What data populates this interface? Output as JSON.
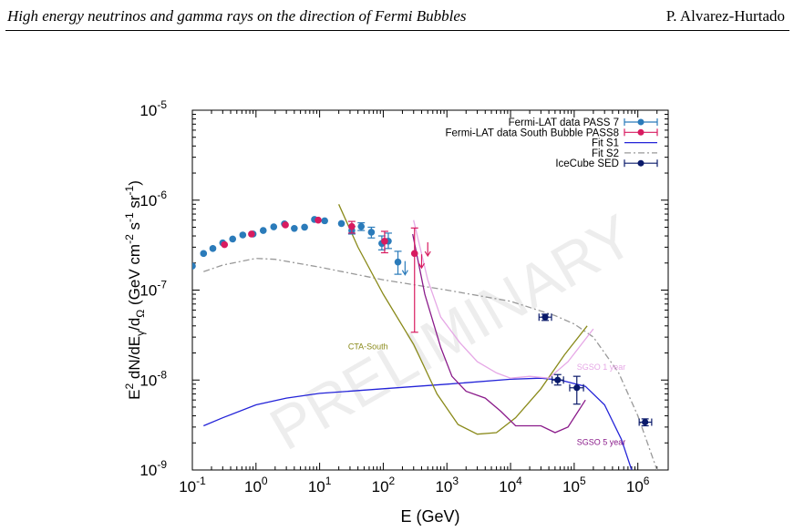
{
  "header": {
    "title": "High energy neutrinos and gamma rays on the direction of Fermi Bubbles",
    "author": "P. Alvarez-Hurtado"
  },
  "watermark": "PRELIMINARY",
  "colors": {
    "pass7": "#2b7bba",
    "pass8": "#d81b60",
    "fitS1": "#2323d8",
    "fitS2": "#999999",
    "icecube": "#0a1a6a",
    "cta": "#8a8a1a",
    "sgso1": "#e6a8e6",
    "sgso5": "#8a1a8a"
  },
  "chart_data": {
    "type": "scatter",
    "xlabel": "E (GeV)",
    "ylabel": "E2 dN/dEγ/dΩ (GeV cm-2 s-1 sr-1)",
    "xscale": "log",
    "yscale": "log",
    "xlim": [
      0.1,
      3000000
    ],
    "ylim": [
      1e-09,
      1e-05
    ],
    "xticks": [
      {
        "v": 0.1,
        "base": "10",
        "exp": "-1"
      },
      {
        "v": 1,
        "base": "10",
        "exp": "0"
      },
      {
        "v": 10,
        "base": "10",
        "exp": "1"
      },
      {
        "v": 100,
        "base": "10",
        "exp": "2"
      },
      {
        "v": 1000,
        "base": "10",
        "exp": "3"
      },
      {
        "v": 10000,
        "base": "10",
        "exp": "4"
      },
      {
        "v": 100000,
        "base": "10",
        "exp": "5"
      },
      {
        "v": 1000000,
        "base": "10",
        "exp": "6"
      }
    ],
    "yticks": [
      {
        "v": 1e-09,
        "base": "10",
        "exp": "-9"
      },
      {
        "v": 1e-08,
        "base": "10",
        "exp": "-8"
      },
      {
        "v": 1e-07,
        "base": "10",
        "exp": "-7"
      },
      {
        "v": 1e-06,
        "base": "10",
        "exp": "-6"
      },
      {
        "v": 1e-05,
        "base": "10",
        "exp": "-5"
      }
    ],
    "legend_position": "top-right",
    "legend": [
      {
        "label": "Fermi-LAT data PASS 7",
        "kind": "errpoint",
        "color": "#2b7bba"
      },
      {
        "label": "Fermi-LAT data South Bubble PASS8",
        "kind": "errpoint",
        "color": "#d81b60"
      },
      {
        "label": "Fit S1",
        "kind": "line",
        "color": "#2323d8"
      },
      {
        "label": "Fit S2",
        "kind": "dashdot",
        "color": "#999999"
      },
      {
        "label": "IceCube SED",
        "kind": "errsquare",
        "color": "#0a1a6a"
      }
    ],
    "series": [
      {
        "name": "Fermi-LAT data PASS 7",
        "kind": "points",
        "color": "#2b7bba",
        "points": [
          {
            "x": 0.1,
            "y": 1.85e-07
          },
          {
            "x": 0.15,
            "y": 2.55e-07
          },
          {
            "x": 0.21,
            "y": 2.9e-07
          },
          {
            "x": 0.3,
            "y": 3.35e-07
          },
          {
            "x": 0.43,
            "y": 3.7e-07
          },
          {
            "x": 0.62,
            "y": 4.1e-07
          },
          {
            "x": 0.9,
            "y": 4.2e-07
          },
          {
            "x": 1.3,
            "y": 4.6e-07
          },
          {
            "x": 1.9,
            "y": 5.05e-07
          },
          {
            "x": 2.8,
            "y": 5.45e-07
          },
          {
            "x": 4,
            "y": 4.85e-07
          },
          {
            "x": 5.8,
            "y": 5e-07
          },
          {
            "x": 8.3,
            "y": 6.1e-07
          },
          {
            "x": 12,
            "y": 5.9e-07
          },
          {
            "x": 22,
            "y": 5.5e-07
          },
          {
            "x": 32,
            "y": 4.6e-07,
            "lo": 4.2e-07,
            "hi": 5.1e-07
          },
          {
            "x": 45,
            "y": 5.1e-07,
            "lo": 4.6e-07,
            "hi": 5.6e-07
          },
          {
            "x": 65,
            "y": 4.4e-07,
            "lo": 3.8e-07,
            "hi": 5e-07
          },
          {
            "x": 95,
            "y": 3.3e-07,
            "lo": 2.8e-07,
            "hi": 4e-07
          },
          {
            "x": 120,
            "y": 3.5e-07,
            "lo": 2.9e-07,
            "hi": 4.3e-07
          },
          {
            "x": 170,
            "y": 2.05e-07,
            "lo": 1.5e-07,
            "hi": 2.7e-07
          }
        ]
      },
      {
        "name": "Fermi-LAT data South Bubble PASS8",
        "kind": "points",
        "color": "#d81b60",
        "points": [
          {
            "x": 0.32,
            "y": 3.2e-07
          },
          {
            "x": 0.85,
            "y": 4.2e-07
          },
          {
            "x": 2.9,
            "y": 5.3e-07
          },
          {
            "x": 9.5,
            "y": 6e-07
          },
          {
            "x": 32,
            "y": 5.1e-07,
            "lo": 4.3e-07,
            "hi": 5.8e-07
          },
          {
            "x": 105,
            "y": 3.5e-07,
            "lo": 2.6e-07,
            "hi": 4.5e-07
          },
          {
            "x": 310,
            "y": 2.55e-07,
            "lo": 3.4e-08,
            "hi": 4.9e-07
          }
        ]
      },
      {
        "name": "Fit S1",
        "kind": "line",
        "color": "#2323d8",
        "points": [
          {
            "x": 0.15,
            "y": 3.1e-09
          },
          {
            "x": 0.3,
            "y": 3.8e-09
          },
          {
            "x": 1,
            "y": 5.3e-09
          },
          {
            "x": 3,
            "y": 6.3e-09
          },
          {
            "x": 10,
            "y": 7.1e-09
          },
          {
            "x": 100,
            "y": 8e-09
          },
          {
            "x": 1000,
            "y": 9e-09
          },
          {
            "x": 10000,
            "y": 1.02e-08
          },
          {
            "x": 30000,
            "y": 1.05e-08
          },
          {
            "x": 60000,
            "y": 1e-08
          },
          {
            "x": 150000,
            "y": 8.5e-09
          },
          {
            "x": 300000,
            "y": 5.3e-09
          },
          {
            "x": 550000,
            "y": 2.2e-09
          },
          {
            "x": 800000,
            "y": 1e-09
          }
        ]
      },
      {
        "name": "Fit S2",
        "kind": "dashdot",
        "color": "#999999",
        "points": [
          {
            "x": 0.15,
            "y": 1.6e-07
          },
          {
            "x": 0.3,
            "y": 1.9e-07
          },
          {
            "x": 1,
            "y": 2.25e-07
          },
          {
            "x": 2,
            "y": 2.2e-07
          },
          {
            "x": 10,
            "y": 1.8e-07
          },
          {
            "x": 100,
            "y": 1.3e-07
          },
          {
            "x": 1000,
            "y": 1e-07
          },
          {
            "x": 10000,
            "y": 7.5e-08
          },
          {
            "x": 50000,
            "y": 5.2e-08
          },
          {
            "x": 100000,
            "y": 4.2e-08
          },
          {
            "x": 200000,
            "y": 3e-08
          },
          {
            "x": 500000,
            "y": 1.2e-08
          },
          {
            "x": 1000000,
            "y": 4e-09
          },
          {
            "x": 2000000,
            "y": 1e-09
          }
        ]
      },
      {
        "name": "IceCube SED",
        "kind": "squares",
        "color": "#0a1a6a",
        "points": [
          {
            "x": 35000,
            "y": 5e-08,
            "xlo": 28000,
            "xhi": 44000,
            "lo": 4.6e-08,
            "hi": 5.4e-08
          },
          {
            "x": 55000,
            "y": 1e-08,
            "xlo": 45000,
            "xhi": 68000,
            "lo": 8.8e-09,
            "hi": 1.15e-08
          },
          {
            "x": 110000,
            "y": 8.2e-09,
            "xlo": 85000,
            "xhi": 140000,
            "lo": 5.4e-09,
            "hi": 1.1e-08
          },
          {
            "x": 1300000,
            "y": 3.4e-09,
            "xlo": 1050000,
            "xhi": 1650000,
            "lo": 3.1e-09,
            "hi": 3.7e-09
          }
        ]
      },
      {
        "name": "CTA-South",
        "kind": "line",
        "color": "#8a8a1a",
        "points": [
          {
            "x": 20,
            "y": 9e-07
          },
          {
            "x": 40,
            "y": 3e-07
          },
          {
            "x": 100,
            "y": 9e-08
          },
          {
            "x": 300,
            "y": 2.5e-08
          },
          {
            "x": 700,
            "y": 7e-09
          },
          {
            "x": 1500,
            "y": 3.2e-09
          },
          {
            "x": 3000,
            "y": 2.5e-09
          },
          {
            "x": 6000,
            "y": 2.6e-09
          },
          {
            "x": 12000,
            "y": 3.8e-09
          },
          {
            "x": 30000,
            "y": 8e-09
          },
          {
            "x": 70000,
            "y": 1.9e-08
          },
          {
            "x": 160000,
            "y": 4e-08
          }
        ]
      },
      {
        "name": "SGSO 1 year",
        "kind": "line",
        "color": "#e6a8e6",
        "points": [
          {
            "x": 300,
            "y": 6e-07
          },
          {
            "x": 500,
            "y": 1.3e-07
          },
          {
            "x": 800,
            "y": 5e-08
          },
          {
            "x": 1600,
            "y": 2.6e-08
          },
          {
            "x": 3000,
            "y": 1.6e-08
          },
          {
            "x": 6000,
            "y": 1.2e-08
          },
          {
            "x": 10000,
            "y": 1.05e-08
          },
          {
            "x": 20000,
            "y": 1.1e-08
          },
          {
            "x": 40000,
            "y": 1.05e-08
          },
          {
            "x": 80000,
            "y": 1.6e-08
          },
          {
            "x": 200000,
            "y": 3.7e-08
          }
        ]
      },
      {
        "name": "SGSO 5 year",
        "kind": "line",
        "color": "#8a1a8a",
        "points": [
          {
            "x": 290,
            "y": 4.2e-07
          },
          {
            "x": 450,
            "y": 9e-08
          },
          {
            "x": 800,
            "y": 2.3e-08
          },
          {
            "x": 1200,
            "y": 1.1e-08
          },
          {
            "x": 2000,
            "y": 7.5e-09
          },
          {
            "x": 4000,
            "y": 6.3e-09
          },
          {
            "x": 7000,
            "y": 4.5e-09
          },
          {
            "x": 12000,
            "y": 3.1e-09
          },
          {
            "x": 30000,
            "y": 3.1e-09
          },
          {
            "x": 50000,
            "y": 2.6e-09
          },
          {
            "x": 80000,
            "y": 3e-09
          },
          {
            "x": 150000,
            "y": 6e-09
          }
        ]
      }
    ],
    "upper_limits": [
      {
        "x": 220,
        "y": 2.1e-07,
        "color": "#2b7bba"
      },
      {
        "x": 400,
        "y": 2.5e-07,
        "color": "#d81b60"
      },
      {
        "x": 500,
        "y": 3.4e-07,
        "color": "#d81b60"
      }
    ],
    "annotations": [
      {
        "text": "CTA-South",
        "x": 28,
        "y": 2.2e-08,
        "color": "#8a8a1a"
      },
      {
        "text": "SGSO 1 year",
        "x": 110000,
        "y": 1.3e-08,
        "color": "#e6a8e6"
      },
      {
        "text": "SGSO 5 year",
        "x": 110000,
        "y": 1.9e-09,
        "color": "#8a1a8a"
      }
    ]
  }
}
